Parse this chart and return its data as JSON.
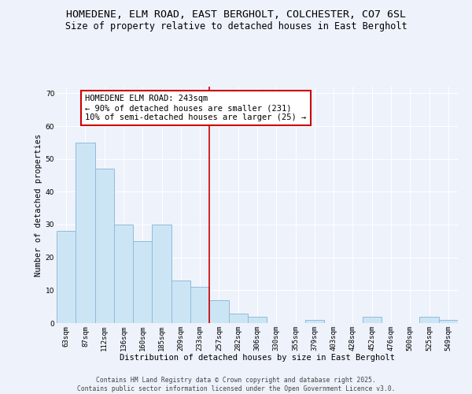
{
  "title": "HOMEDENE, ELM ROAD, EAST BERGHOLT, COLCHESTER, CO7 6SL",
  "subtitle": "Size of property relative to detached houses in East Bergholt",
  "xlabel": "Distribution of detached houses by size in East Bergholt",
  "ylabel": "Number of detached properties",
  "categories": [
    "63sqm",
    "87sqm",
    "112sqm",
    "136sqm",
    "160sqm",
    "185sqm",
    "209sqm",
    "233sqm",
    "257sqm",
    "282sqm",
    "306sqm",
    "330sqm",
    "355sqm",
    "379sqm",
    "403sqm",
    "428sqm",
    "452sqm",
    "476sqm",
    "500sqm",
    "525sqm",
    "549sqm"
  ],
  "values": [
    28,
    55,
    47,
    30,
    25,
    30,
    13,
    11,
    7,
    3,
    2,
    0,
    0,
    1,
    0,
    0,
    2,
    0,
    0,
    2,
    1
  ],
  "bar_color": "#cce5f5",
  "bar_edge_color": "#90bcd8",
  "vline_x": 7.5,
  "vline_color": "#cc0000",
  "annotation_text": "HOMEDENE ELM ROAD: 243sqm\n← 90% of detached houses are smaller (231)\n10% of semi-detached houses are larger (25) →",
  "annotation_box_color": "white",
  "annotation_box_edge_color": "#cc0000",
  "ylim": [
    0,
    72
  ],
  "yticks": [
    0,
    10,
    20,
    30,
    40,
    50,
    60,
    70
  ],
  "background_color": "#eef2fb",
  "footer_text": "Contains HM Land Registry data © Crown copyright and database right 2025.\nContains public sector information licensed under the Open Government Licence v3.0.",
  "title_fontsize": 9.5,
  "subtitle_fontsize": 8.5,
  "axis_label_fontsize": 7.5,
  "tick_fontsize": 6.5,
  "annotation_fontsize": 7.5,
  "footer_fontsize": 5.8
}
